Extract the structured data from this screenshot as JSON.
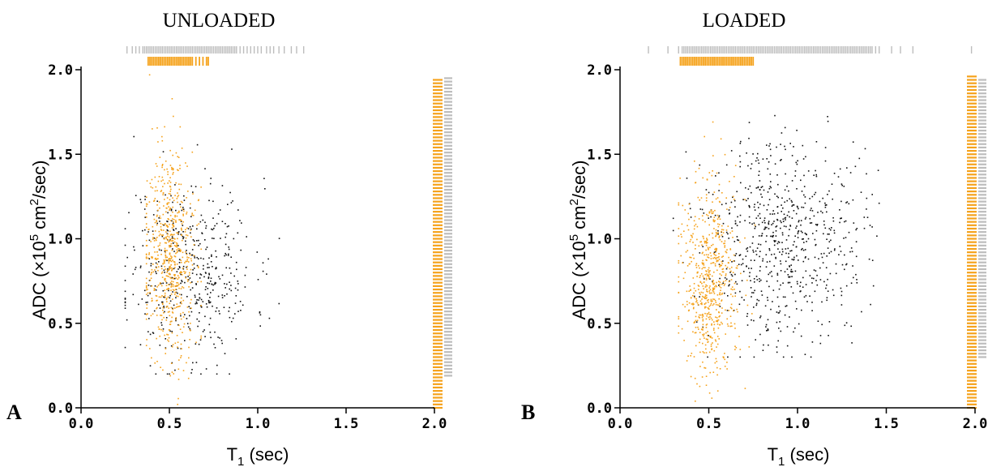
{
  "figure": {
    "colors": {
      "orange": "#f5a21b",
      "black": "#111111",
      "gray": "#bdbdbd",
      "axis": "#000000"
    }
  },
  "chart_data": [
    {
      "type": "scatter",
      "panel_letter": "A",
      "title": "UNLOADED",
      "xlabel_main": "T",
      "xlabel_sub": "1",
      "xlabel_tail": " (sec)",
      "ylabel_main": "ADC (×10",
      "ylabel_sup1": "5",
      "ylabel_mid": " cm",
      "ylabel_sup2": "2",
      "ylabel_tail": "/sec)",
      "xlim": [
        0,
        2
      ],
      "ylim": [
        0,
        2
      ],
      "x_ticks": [
        "0.0",
        "0.5",
        "1.0",
        "1.5",
        "2.0"
      ],
      "y_ticks": [
        "0.0",
        "0.5",
        "1.0",
        "1.5",
        "2.0"
      ],
      "series": [
        {
          "color": "orange",
          "dist": {
            "count": 650,
            "xmean": 0.5,
            "xsd": 0.07,
            "xmin": 0.37,
            "xmax": 0.68,
            "ymean": 0.9,
            "ysd": 0.3,
            "ymin": 0.02,
            "ymax": 1.97
          }
        },
        {
          "color": "black",
          "dist": {
            "count": 480,
            "xmean": 0.62,
            "xsd": 0.18,
            "xmin": 0.25,
            "xmax": 1.27,
            "ymean": 0.82,
            "ysd": 0.27,
            "ymin": 0.2,
            "ymax": 1.85
          }
        }
      ],
      "top_rug": {
        "gray": [
          0.26,
          0.29,
          0.31,
          0.33,
          0.35,
          0.36,
          0.37,
          0.38,
          0.39,
          0.4,
          0.41,
          0.42,
          0.43,
          0.44,
          0.45,
          0.46,
          0.47,
          0.48,
          0.49,
          0.5,
          0.51,
          0.52,
          0.53,
          0.54,
          0.55,
          0.56,
          0.57,
          0.58,
          0.59,
          0.6,
          0.61,
          0.62,
          0.63,
          0.64,
          0.65,
          0.66,
          0.67,
          0.68,
          0.69,
          0.7,
          0.71,
          0.72,
          0.73,
          0.74,
          0.75,
          0.76,
          0.77,
          0.78,
          0.79,
          0.8,
          0.81,
          0.82,
          0.83,
          0.84,
          0.85,
          0.86,
          0.87,
          0.88,
          0.9,
          0.92,
          0.94,
          0.96,
          0.98,
          1.0,
          1.02,
          1.05,
          1.07,
          1.09,
          1.12,
          1.15,
          1.19,
          1.22,
          1.26
        ],
        "orange": [
          0.38,
          0.39,
          0.4,
          0.41,
          0.42,
          0.43,
          0.44,
          0.45,
          0.46,
          0.47,
          0.48,
          0.49,
          0.5,
          0.51,
          0.52,
          0.53,
          0.54,
          0.55,
          0.56,
          0.57,
          0.58,
          0.59,
          0.6,
          0.61,
          0.62,
          0.63,
          0.65,
          0.67,
          0.69,
          0.71,
          0.72
        ]
      },
      "right_rug": {
        "orange_range": [
          0.0,
          1.95
        ],
        "gray_range": [
          0.19,
          1.95
        ]
      }
    },
    {
      "type": "scatter",
      "panel_letter": "B",
      "title": "LOADED",
      "xlabel_main": "T",
      "xlabel_sub": "1",
      "xlabel_tail": " (sec)",
      "ylabel_main": "ADC (×10",
      "ylabel_sup1": "5",
      "ylabel_mid": " cm",
      "ylabel_sup2": "2",
      "ylabel_tail": "/sec)",
      "xlim": [
        0,
        2
      ],
      "ylim": [
        0,
        2
      ],
      "x_ticks": [
        "0.0",
        "0.5",
        "1.0",
        "1.5",
        "2.0"
      ],
      "y_ticks": [
        "0.0",
        "0.5",
        "1.0",
        "1.5",
        "2.0"
      ],
      "series": [
        {
          "color": "orange",
          "dist": {
            "count": 640,
            "xmean": 0.5,
            "xsd": 0.08,
            "xmin": 0.33,
            "xmax": 0.76,
            "ymean": 0.75,
            "ysd": 0.28,
            "ymin": 0.02,
            "ymax": 1.95
          }
        },
        {
          "color": "black",
          "dist": {
            "count": 720,
            "xmean": 0.92,
            "xsd": 0.22,
            "xmin": 0.3,
            "xmax": 1.65,
            "ymean": 1.0,
            "ysd": 0.3,
            "ymin": 0.3,
            "ymax": 1.97
          }
        }
      ],
      "top_rug": {
        "gray": [
          0.16,
          0.27,
          0.33,
          0.35,
          0.36,
          0.37,
          0.38,
          0.39,
          0.4,
          0.41,
          0.42,
          0.43,
          0.44,
          0.45,
          0.46,
          0.47,
          0.48,
          0.49,
          0.5,
          0.51,
          0.52,
          0.53,
          0.54,
          0.55,
          0.56,
          0.57,
          0.58,
          0.59,
          0.6,
          0.61,
          0.62,
          0.63,
          0.64,
          0.65,
          0.66,
          0.67,
          0.68,
          0.69,
          0.7,
          0.71,
          0.72,
          0.73,
          0.74,
          0.75,
          0.76,
          0.77,
          0.78,
          0.79,
          0.8,
          0.81,
          0.82,
          0.83,
          0.84,
          0.85,
          0.86,
          0.87,
          0.88,
          0.89,
          0.9,
          0.91,
          0.92,
          0.93,
          0.94,
          0.95,
          0.96,
          0.97,
          0.98,
          0.99,
          1.0,
          1.01,
          1.02,
          1.03,
          1.04,
          1.05,
          1.06,
          1.07,
          1.08,
          1.09,
          1.1,
          1.11,
          1.12,
          1.13,
          1.14,
          1.15,
          1.16,
          1.17,
          1.18,
          1.19,
          1.2,
          1.21,
          1.22,
          1.23,
          1.24,
          1.25,
          1.26,
          1.27,
          1.28,
          1.29,
          1.3,
          1.31,
          1.32,
          1.33,
          1.34,
          1.35,
          1.36,
          1.37,
          1.38,
          1.39,
          1.4,
          1.41,
          1.42,
          1.44,
          1.46,
          1.53,
          1.58,
          1.65,
          1.98
        ],
        "orange": [
          0.34,
          0.35,
          0.36,
          0.37,
          0.38,
          0.39,
          0.4,
          0.41,
          0.42,
          0.43,
          0.44,
          0.45,
          0.46,
          0.47,
          0.48,
          0.49,
          0.5,
          0.51,
          0.52,
          0.53,
          0.54,
          0.55,
          0.56,
          0.57,
          0.58,
          0.59,
          0.6,
          0.61,
          0.62,
          0.63,
          0.64,
          0.65,
          0.66,
          0.67,
          0.68,
          0.69,
          0.7,
          0.71,
          0.72,
          0.73,
          0.74,
          0.75
        ]
      },
      "right_rug": {
        "orange_range": [
          0.0,
          1.96
        ],
        "gray_range": [
          0.3,
          1.95
        ]
      }
    }
  ]
}
